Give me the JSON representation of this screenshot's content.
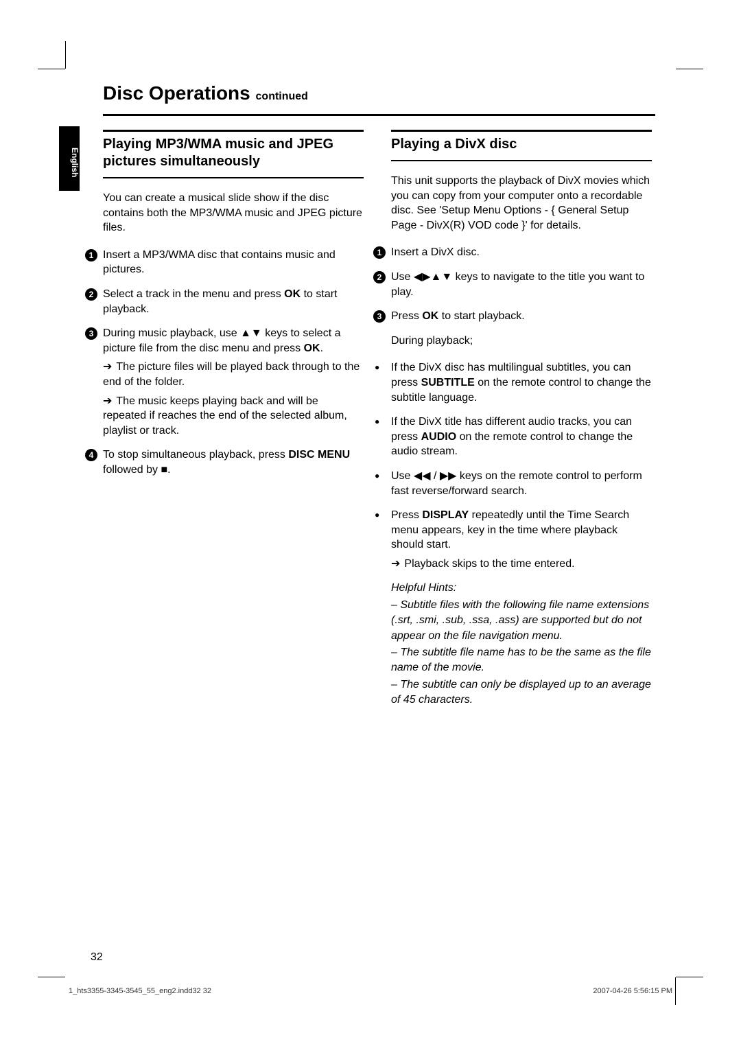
{
  "title": "Disc Operations",
  "title_suffix": "continued",
  "language_tab": "English",
  "page_number": "32",
  "footer_left": "1_hts3355-3345-3545_55_eng2.indd32   32",
  "footer_right": "2007-04-26   5:56:15 PM",
  "colors": {
    "text": "#000000",
    "background": "#ffffff",
    "rule": "#000000"
  },
  "typography": {
    "body_size_pt": 12,
    "heading_size_pt": 15,
    "title_size_pt": 21
  },
  "left_column": {
    "heading": "Playing MP3/WMA music and JPEG pictures simultaneously",
    "intro": "You can create a musical slide show if the disc contains both the MP3/WMA music and JPEG picture files.",
    "steps": [
      {
        "n": "1",
        "text": "Insert a MP3/WMA disc that contains music and pictures."
      },
      {
        "n": "2",
        "pre": "Select a track in the menu and press ",
        "bold": "OK",
        "post": " to start playback."
      },
      {
        "n": "3",
        "pre": "During music playback, use ",
        "sym": "▲▼",
        "mid": " keys to select a picture file from the disc menu and press ",
        "bold": "OK",
        "post": ".",
        "subs": [
          "The picture files will be played back through to the end of the folder.",
          "The music keeps playing back and will be repeated if reaches the end of the selected album, playlist or track."
        ]
      },
      {
        "n": "4",
        "pre": "To stop simultaneous playback, press ",
        "bold": "DISC MENU",
        "mid2": " followed by ",
        "sym2": "■",
        "post": "."
      }
    ]
  },
  "right_column": {
    "heading": "Playing a DivX disc",
    "intro": "This unit supports the playback of DivX movies which you can copy from your computer onto a recordable disc.  See 'Setup Menu Options - { General Setup Page - DivX(R) VOD code }' for details.",
    "steps": [
      {
        "n": "1",
        "text": "Insert a DivX disc."
      },
      {
        "n": "2",
        "pre": "Use ",
        "sym": "◀▶▲▼",
        "post": " keys to navigate to the title you want to play."
      },
      {
        "n": "3",
        "pre": "Press ",
        "bold": "OK",
        "post": " to start playback."
      }
    ],
    "during": "During playback;",
    "bullets": [
      {
        "pre": "If the DivX disc has multilingual subtitles, you can press ",
        "bold": "SUBTITLE",
        "post": " on the remote control to change the subtitle language."
      },
      {
        "pre": "If the DivX title has different audio tracks, you can press ",
        "bold": "AUDIO",
        "post": " on the remote control to change the audio stream."
      },
      {
        "pre": "Use ",
        "sym": "◀◀ / ▶▶",
        "post": " keys on the remote control to perform fast reverse/forward search."
      },
      {
        "pre": "Press ",
        "bold": "DISPLAY",
        "post": " repeatedly until the Time Search menu appears, key in the time where playback should start.",
        "sub": "Playback skips to the time entered."
      }
    ],
    "hints_title": "Helpful Hints:",
    "hints": [
      "– Subtitle files with the following file name extensions (.srt, .smi, .sub, .ssa, .ass) are supported but do not appear on the file navigation menu.",
      "– The subtitle file name has to be the same as the file name of the movie.",
      "– The subtitle can only be displayed up to an average of 45 characters."
    ]
  }
}
